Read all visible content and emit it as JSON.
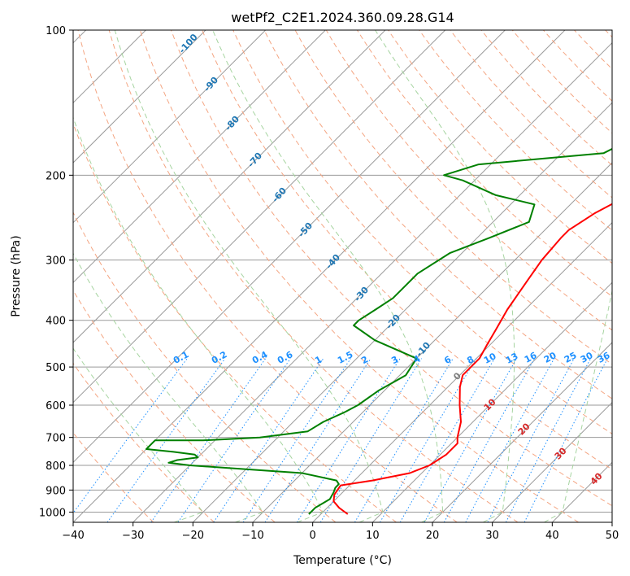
{
  "chart_data": {
    "type": "line",
    "subtype": "skew-t log-p",
    "title": "wetPf2_C2E1.2024.360.09.28.G14",
    "xlabel": "Temperature (°C)",
    "ylabel": "Pressure (hPa)",
    "xlim": [
      -40,
      50
    ],
    "ylim": [
      1050,
      100
    ],
    "y_scale": "log",
    "x_ticks": [
      -40,
      -30,
      -20,
      -10,
      0,
      10,
      20,
      30,
      40,
      50
    ],
    "y_ticks": [
      1000,
      900,
      800,
      700,
      600,
      500,
      400,
      300,
      200,
      100
    ],
    "grid": true,
    "series": [
      {
        "color": "#ff0000",
        "points": [
          [
            4.5,
            1010
          ],
          [
            2,
            980
          ],
          [
            0,
            950
          ],
          [
            -1,
            920
          ],
          [
            -1.5,
            880
          ],
          [
            3,
            860
          ],
          [
            8,
            830
          ],
          [
            10,
            800
          ],
          [
            11,
            760
          ],
          [
            11,
            720
          ],
          [
            10,
            700
          ],
          [
            8,
            650
          ],
          [
            5,
            600
          ],
          [
            2,
            550
          ],
          [
            0.5,
            520
          ],
          [
            0.5,
            480
          ],
          [
            -0.5,
            450
          ],
          [
            -1.5,
            420
          ],
          [
            -3,
            380
          ],
          [
            -4.5,
            330
          ],
          [
            -5.5,
            300
          ],
          [
            -6,
            270
          ],
          [
            -6,
            260
          ],
          [
            -4.5,
            240
          ],
          [
            -2.5,
            225
          ],
          [
            1,
            210
          ],
          [
            4,
            200
          ],
          [
            6,
            190
          ],
          [
            7.5,
            180
          ],
          [
            9,
            170
          ],
          [
            11,
            150
          ],
          [
            12.5,
            135
          ],
          [
            14,
            120
          ],
          [
            15.5,
            110
          ],
          [
            17,
            100
          ]
        ]
      },
      {
        "color": "#008000",
        "points": [
          [
            -2,
            1010
          ],
          [
            -2,
            980
          ],
          [
            -1.5,
            960
          ],
          [
            -1,
            940
          ],
          [
            -1.5,
            910
          ],
          [
            -2,
            890
          ],
          [
            -2,
            875
          ],
          [
            -3,
            860
          ],
          [
            -10,
            830
          ],
          [
            -20,
            815
          ],
          [
            -30,
            800
          ],
          [
            -34,
            790
          ],
          [
            -33,
            780
          ],
          [
            -30,
            770
          ],
          [
            -31,
            760
          ],
          [
            -35,
            750
          ],
          [
            -40,
            740
          ],
          [
            -40,
            710
          ],
          [
            -32,
            710
          ],
          [
            -23,
            700
          ],
          [
            -16,
            680
          ],
          [
            -15,
            650
          ],
          [
            -13,
            620
          ],
          [
            -12,
            600
          ],
          [
            -11,
            560
          ],
          [
            -9,
            520
          ],
          [
            -10,
            480
          ],
          [
            -20,
            440
          ],
          [
            -26,
            410
          ],
          [
            -26,
            400
          ],
          [
            -25,
            380
          ],
          [
            -24,
            360
          ],
          [
            -24,
            340
          ],
          [
            -24,
            320
          ],
          [
            -22,
            290
          ],
          [
            -18,
            270
          ],
          [
            -14,
            250
          ],
          [
            -16,
            230
          ],
          [
            -24,
            220
          ],
          [
            -32,
            205
          ],
          [
            -36,
            200
          ],
          [
            -32,
            190
          ],
          [
            -13,
            180
          ],
          [
            -11,
            170
          ],
          [
            -10,
            160
          ],
          [
            -10,
            150
          ],
          [
            -8,
            140
          ],
          [
            -5,
            130
          ],
          [
            -2,
            120
          ],
          [
            0,
            110
          ],
          [
            2,
            100
          ]
        ]
      }
    ],
    "dry_adiabats_theta_c": [
      -30,
      -20,
      -10,
      0,
      10,
      20,
      30,
      40,
      50,
      60,
      70,
      80,
      90,
      100,
      110,
      120,
      130,
      140,
      150,
      160,
      170,
      180,
      190,
      200,
      210,
      220,
      230,
      240,
      250
    ],
    "dry_adiabat_labels": [
      "-100",
      "-90",
      "-80",
      "-70",
      "-60",
      "-50",
      "-40",
      "-30",
      "-20",
      "-10"
    ],
    "moist_adiabats_c": [
      -20,
      -10,
      0,
      10,
      20,
      30,
      40
    ],
    "moist_adiabat_labels": [
      "0",
      "10",
      "20",
      "30",
      "40"
    ],
    "mixing_ratio_lines_gkg": [
      0.1,
      0.2,
      0.4,
      0.6,
      1,
      1.5,
      2,
      3,
      4,
      6,
      8,
      10,
      13,
      16,
      20,
      25,
      30,
      36
    ],
    "mixing_ratio_labels": [
      "0.1",
      "0.2",
      "0.4",
      "0.6",
      "1",
      "1.5",
      "2",
      "3",
      "4",
      "6",
      "8",
      "10",
      "13",
      "16",
      "20",
      "25",
      "30",
      "36"
    ],
    "colors": {
      "temperature": "#ff0000",
      "dewpoint": "#008000",
      "isotherm": "#9a9a9a",
      "isobar": "#9a9a9a",
      "dry_adiabat": "#f4a582",
      "moist_adiabat": "#a6d4a0",
      "mixing_ratio": "#1e90ff",
      "dry_adiabat_label": "#1f77b4",
      "moist_adiabat_label": "#d62728",
      "zero_label": "#7f7f7f"
    }
  }
}
